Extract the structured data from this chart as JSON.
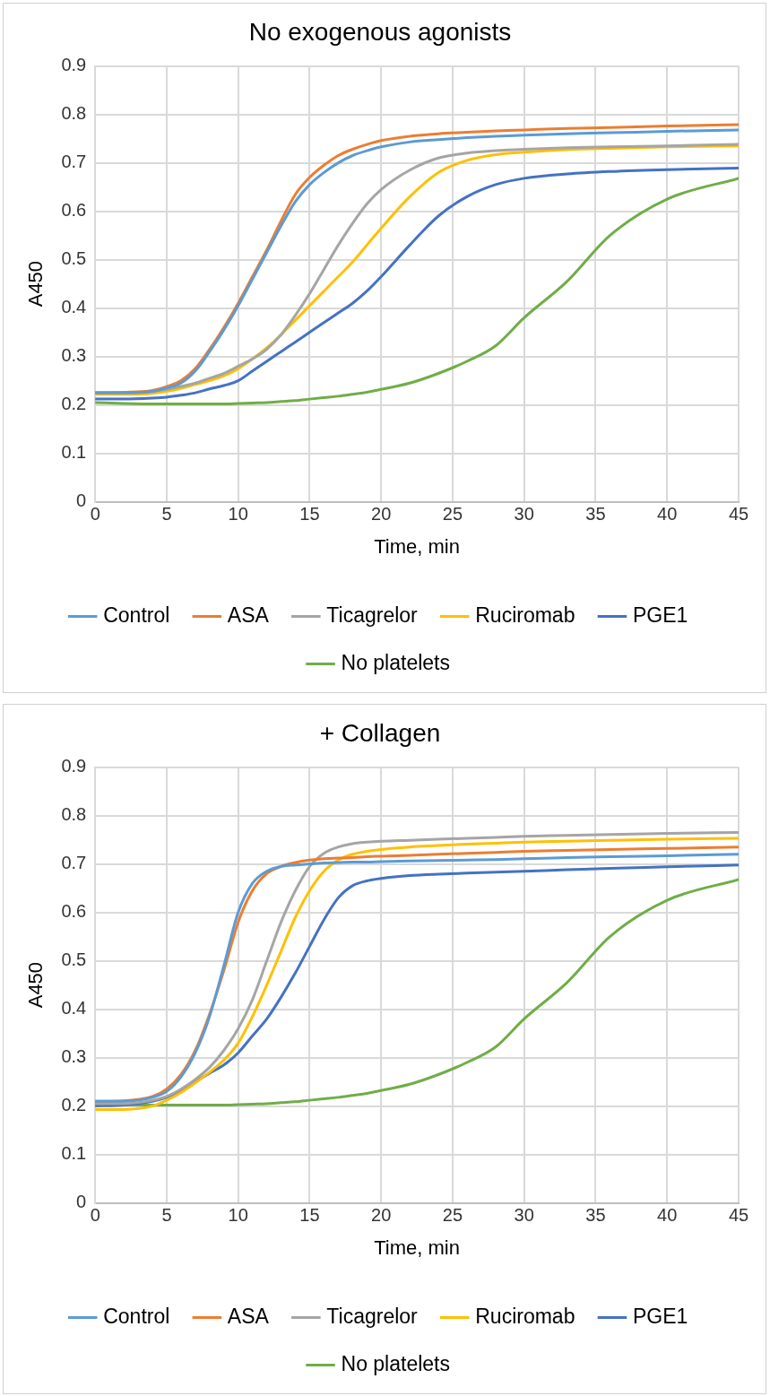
{
  "chart_data": [
    {
      "type": "line",
      "title": "No exogenous agonists",
      "xlabel": "Time, min",
      "ylabel": "A450",
      "x": [
        0,
        2,
        4,
        5,
        6,
        7,
        8,
        9,
        10,
        11,
        12,
        13,
        14,
        15,
        16,
        17,
        18,
        19,
        20,
        22,
        24,
        26,
        28,
        30,
        33,
        36,
        40,
        45
      ],
      "series": [
        {
          "name": "Control",
          "color": "#5b9bd5",
          "values": [
            0.225,
            0.225,
            0.228,
            0.235,
            0.245,
            0.27,
            0.31,
            0.355,
            0.405,
            0.46,
            0.515,
            0.57,
            0.62,
            0.655,
            0.68,
            0.7,
            0.715,
            0.725,
            0.733,
            0.743,
            0.748,
            0.752,
            0.755,
            0.757,
            0.76,
            0.762,
            0.765,
            0.768
          ]
        },
        {
          "name": "ASA",
          "color": "#ed7d31",
          "values": [
            0.225,
            0.226,
            0.23,
            0.238,
            0.25,
            0.275,
            0.315,
            0.36,
            0.41,
            0.465,
            0.52,
            0.58,
            0.635,
            0.67,
            0.695,
            0.715,
            0.728,
            0.738,
            0.746,
            0.755,
            0.76,
            0.763,
            0.766,
            0.768,
            0.771,
            0.773,
            0.776,
            0.779
          ]
        },
        {
          "name": "Ticagrelor",
          "color": "#a5a5a5",
          "values": [
            0.225,
            0.225,
            0.228,
            0.232,
            0.238,
            0.245,
            0.255,
            0.265,
            0.28,
            0.295,
            0.315,
            0.345,
            0.385,
            0.43,
            0.48,
            0.53,
            0.575,
            0.615,
            0.645,
            0.685,
            0.71,
            0.72,
            0.725,
            0.728,
            0.731,
            0.733,
            0.735,
            0.738
          ]
        },
        {
          "name": "Ruciromab",
          "color": "#ffc000",
          "values": [
            0.222,
            0.222,
            0.224,
            0.228,
            0.234,
            0.242,
            0.25,
            0.26,
            0.275,
            0.295,
            0.318,
            0.345,
            0.375,
            0.405,
            0.435,
            0.465,
            0.495,
            0.53,
            0.565,
            0.63,
            0.68,
            0.705,
            0.717,
            0.722,
            0.727,
            0.73,
            0.733,
            0.735
          ]
        },
        {
          "name": "PGE1",
          "color": "#4472c4",
          "values": [
            0.212,
            0.212,
            0.214,
            0.216,
            0.22,
            0.225,
            0.233,
            0.24,
            0.25,
            0.27,
            0.29,
            0.31,
            0.33,
            0.35,
            0.37,
            0.39,
            0.41,
            0.435,
            0.465,
            0.53,
            0.59,
            0.63,
            0.655,
            0.668,
            0.677,
            0.682,
            0.686,
            0.689
          ]
        },
        {
          "name": "No platelets",
          "color": "#70ad47",
          "values": [
            0.205,
            0.203,
            0.202,
            0.202,
            0.202,
            0.202,
            0.202,
            0.202,
            0.203,
            0.204,
            0.205,
            0.207,
            0.209,
            0.212,
            0.215,
            0.218,
            0.222,
            0.226,
            0.232,
            0.245,
            0.265,
            0.29,
            0.322,
            0.38,
            0.455,
            0.55,
            0.625,
            0.668
          ]
        }
      ],
      "xlim": [
        0,
        45
      ],
      "xticks": [
        0,
        5,
        10,
        15,
        20,
        25,
        30,
        35,
        40,
        45
      ],
      "ylim": [
        0,
        0.9
      ],
      "yticks": [
        0,
        0.1,
        0.2,
        0.3,
        0.4,
        0.5,
        0.6,
        0.7,
        0.8,
        0.9
      ],
      "grid": true,
      "legend": "bottom",
      "marker": "none",
      "line_style": "solid"
    },
    {
      "type": "line",
      "title": "+ Collagen",
      "xlabel": "Time, min",
      "ylabel": "A450",
      "x": [
        0,
        2,
        4,
        5,
        6,
        7,
        8,
        9,
        10,
        11,
        12,
        13,
        14,
        15,
        16,
        17,
        18,
        19,
        20,
        22,
        24,
        26,
        28,
        30,
        33,
        36,
        40,
        45
      ],
      "series": [
        {
          "name": "Control",
          "color": "#5b9bd5",
          "values": [
            0.21,
            0.21,
            0.218,
            0.23,
            0.26,
            0.31,
            0.385,
            0.49,
            0.6,
            0.66,
            0.685,
            0.695,
            0.698,
            0.7,
            0.702,
            0.703,
            0.704,
            0.704,
            0.705,
            0.706,
            0.707,
            0.708,
            0.709,
            0.711,
            0.713,
            0.715,
            0.717,
            0.72
          ]
        },
        {
          "name": "ASA",
          "color": "#ed7d31",
          "values": [
            0.21,
            0.211,
            0.22,
            0.235,
            0.265,
            0.315,
            0.39,
            0.48,
            0.58,
            0.645,
            0.68,
            0.695,
            0.703,
            0.708,
            0.711,
            0.712,
            0.713,
            0.715,
            0.716,
            0.718,
            0.72,
            0.722,
            0.724,
            0.726,
            0.728,
            0.73,
            0.732,
            0.735
          ]
        },
        {
          "name": "Ticagrelor",
          "color": "#a5a5a5",
          "values": [
            0.205,
            0.205,
            0.212,
            0.22,
            0.235,
            0.255,
            0.28,
            0.315,
            0.36,
            0.42,
            0.5,
            0.58,
            0.645,
            0.695,
            0.722,
            0.735,
            0.742,
            0.745,
            0.747,
            0.749,
            0.751,
            0.753,
            0.755,
            0.757,
            0.759,
            0.761,
            0.763,
            0.765
          ]
        },
        {
          "name": "Ruciromab",
          "color": "#ffc000",
          "values": [
            0.193,
            0.193,
            0.2,
            0.212,
            0.228,
            0.248,
            0.27,
            0.295,
            0.33,
            0.385,
            0.45,
            0.52,
            0.59,
            0.645,
            0.685,
            0.708,
            0.72,
            0.726,
            0.73,
            0.735,
            0.738,
            0.741,
            0.743,
            0.745,
            0.747,
            0.749,
            0.751,
            0.753
          ]
        },
        {
          "name": "PGE1",
          "color": "#4472c4",
          "values": [
            0.2,
            0.202,
            0.21,
            0.218,
            0.232,
            0.25,
            0.268,
            0.285,
            0.31,
            0.345,
            0.38,
            0.425,
            0.475,
            0.53,
            0.585,
            0.63,
            0.655,
            0.665,
            0.67,
            0.676,
            0.679,
            0.681,
            0.683,
            0.685,
            0.688,
            0.691,
            0.694,
            0.698
          ]
        },
        {
          "name": "No platelets",
          "color": "#70ad47",
          "values": [
            0.205,
            0.203,
            0.202,
            0.202,
            0.202,
            0.202,
            0.202,
            0.202,
            0.203,
            0.204,
            0.205,
            0.207,
            0.209,
            0.212,
            0.215,
            0.218,
            0.222,
            0.226,
            0.232,
            0.245,
            0.265,
            0.29,
            0.322,
            0.38,
            0.455,
            0.55,
            0.625,
            0.668
          ]
        }
      ],
      "xlim": [
        0,
        45
      ],
      "xticks": [
        0,
        5,
        10,
        15,
        20,
        25,
        30,
        35,
        40,
        45
      ],
      "ylim": [
        0,
        0.9
      ],
      "yticks": [
        0,
        0.1,
        0.2,
        0.3,
        0.4,
        0.5,
        0.6,
        0.7,
        0.8,
        0.9
      ],
      "grid": true,
      "legend": "bottom",
      "marker": "none",
      "line_style": "solid"
    }
  ]
}
